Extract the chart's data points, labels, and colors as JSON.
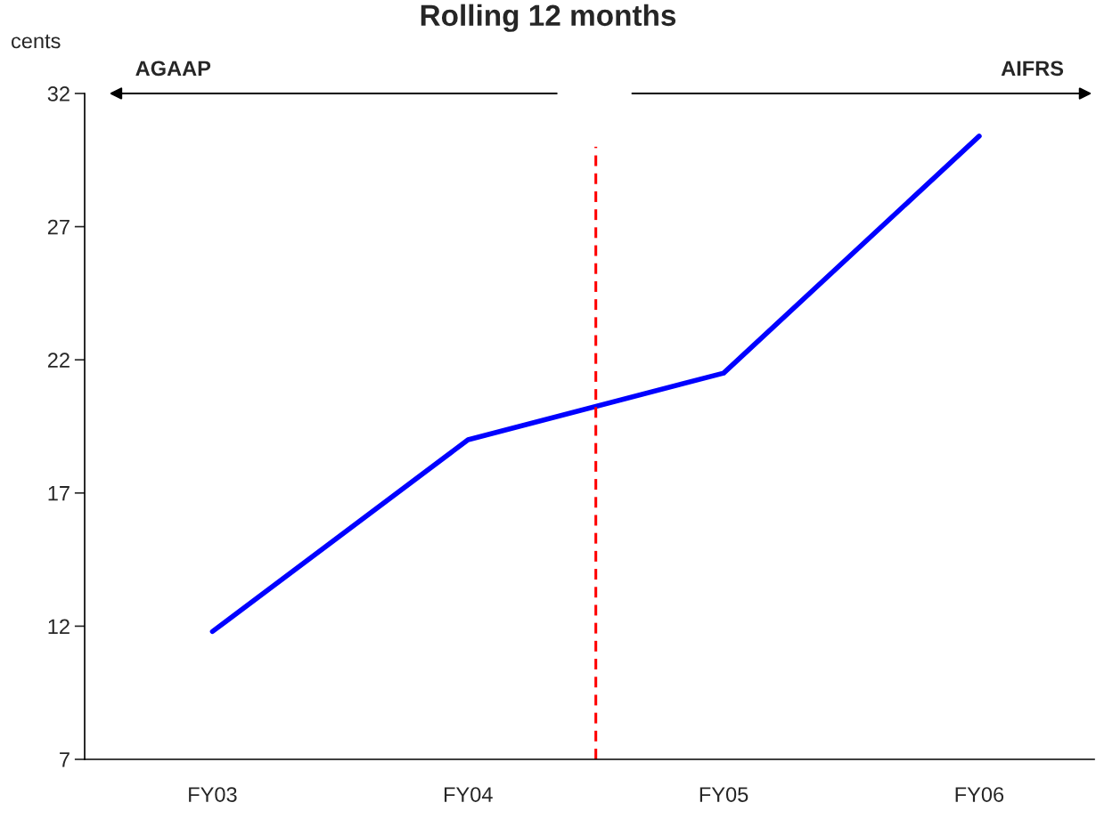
{
  "chart_data": {
    "type": "line",
    "title": "Rolling 12 months",
    "ylabel": "cents",
    "categories": [
      "FY03",
      "FY04",
      "FY05",
      "FY06"
    ],
    "series": [
      {
        "color": "#0000ff",
        "values": [
          11.8,
          19.0,
          21.5,
          30.4
        ]
      }
    ],
    "ylim": [
      7,
      32
    ],
    "yticks": [
      7,
      12,
      17,
      22,
      27,
      32
    ],
    "annotations": [
      "AGAAP",
      "AIFRS"
    ],
    "grid": false,
    "legend": false,
    "marker": "none",
    "line_style": "solid"
  }
}
